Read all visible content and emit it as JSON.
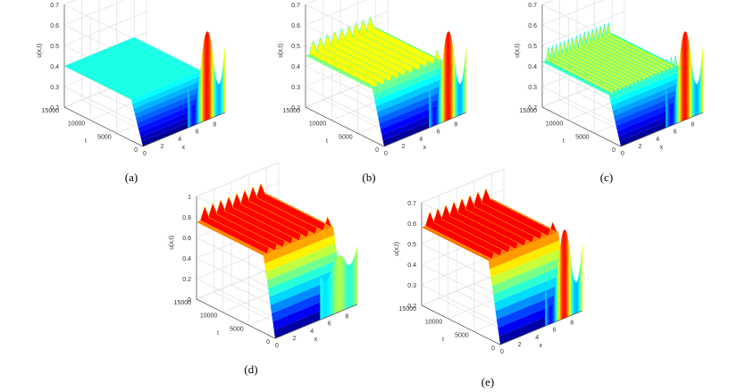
{
  "figure": {
    "captions": [
      "(a)",
      "(b)",
      "(c)",
      "(d)",
      "(e)"
    ]
  },
  "chart_data": [
    {
      "type": "surface",
      "caption": "(a)",
      "zlabel": "u(x,t)",
      "xlabel": "x",
      "ylabel": "t",
      "z_ticks": [
        "0.2",
        "0.3",
        "0.4",
        "0.5",
        "0.6",
        "0.7"
      ],
      "x_ticks": [
        "0",
        "2",
        "4",
        "6",
        "8"
      ],
      "t_ticks": [
        "0",
        "5000",
        "10000",
        "15000"
      ],
      "zlim": [
        0.2,
        0.7
      ],
      "xlim": [
        0,
        9.4
      ],
      "tlim": [
        0,
        15000
      ],
      "stripes": 0,
      "plateau": 0.4,
      "front_profile_amplitude": 0.18,
      "front_profile_periods": 3
    },
    {
      "type": "surface",
      "caption": "(b)",
      "zlabel": "u(x,t)",
      "xlabel": "x",
      "ylabel": "t",
      "z_ticks": [
        "0.2",
        "0.3",
        "0.4",
        "0.5",
        "0.6",
        "0.7"
      ],
      "x_ticks": [
        "0",
        "2",
        "4",
        "6",
        "8"
      ],
      "t_ticks": [
        "0",
        "5000",
        "10000",
        "15000"
      ],
      "zlim": [
        0.2,
        0.7
      ],
      "xlim": [
        0,
        9.4
      ],
      "tlim": [
        0,
        15000
      ],
      "stripes": 9,
      "plateau": 0.45,
      "front_profile_amplitude": 0.18,
      "front_profile_periods": 3
    },
    {
      "type": "surface",
      "caption": "(c)",
      "zlabel": "u(x,t)",
      "xlabel": "x",
      "ylabel": "t",
      "z_ticks": [
        "0.2",
        "0.3",
        "0.4",
        "0.5",
        "0.6",
        "0.7"
      ],
      "x_ticks": [
        "0",
        "2",
        "4",
        "6",
        "8"
      ],
      "t_ticks": [
        "0",
        "5000",
        "10000",
        "15000"
      ],
      "zlim": [
        0.2,
        0.7
      ],
      "xlim": [
        0,
        9.4
      ],
      "tlim": [
        0,
        15000
      ],
      "stripes": 16,
      "plateau": 0.42,
      "front_profile_amplitude": 0.18,
      "front_profile_periods": 3
    },
    {
      "type": "surface",
      "caption": "(d)",
      "zlabel": "u(x,t)",
      "xlabel": "x",
      "ylabel": "t",
      "z_ticks": [
        "0",
        "0.2",
        "0.4",
        "0.6",
        "0.8",
        "1"
      ],
      "x_ticks": [
        "0",
        "2",
        "4",
        "6",
        "8"
      ],
      "t_ticks": [
        "0",
        "5000",
        "10000",
        "15000"
      ],
      "zlim": [
        0,
        1
      ],
      "xlim": [
        0,
        9.4
      ],
      "tlim": [
        0,
        15000
      ],
      "stripes": 8,
      "plateau": 0.75,
      "front_profile_amplitude": 0.1,
      "front_profile_periods": 3
    },
    {
      "type": "surface",
      "caption": "(e)",
      "zlabel": "u(x,t)",
      "xlabel": "x",
      "ylabel": "t",
      "z_ticks": [
        "0.2",
        "0.3",
        "0.4",
        "0.5",
        "0.6",
        "0.7"
      ],
      "x_ticks": [
        "0",
        "2",
        "4",
        "6",
        "8"
      ],
      "t_ticks": [
        "0",
        "5000",
        "10000",
        "15000"
      ],
      "zlim": [
        0.2,
        0.7
      ],
      "xlim": [
        0,
        9.4
      ],
      "tlim": [
        0,
        15000
      ],
      "stripes": 8,
      "plateau": 0.58,
      "front_profile_amplitude": 0.18,
      "front_profile_periods": 3
    }
  ]
}
